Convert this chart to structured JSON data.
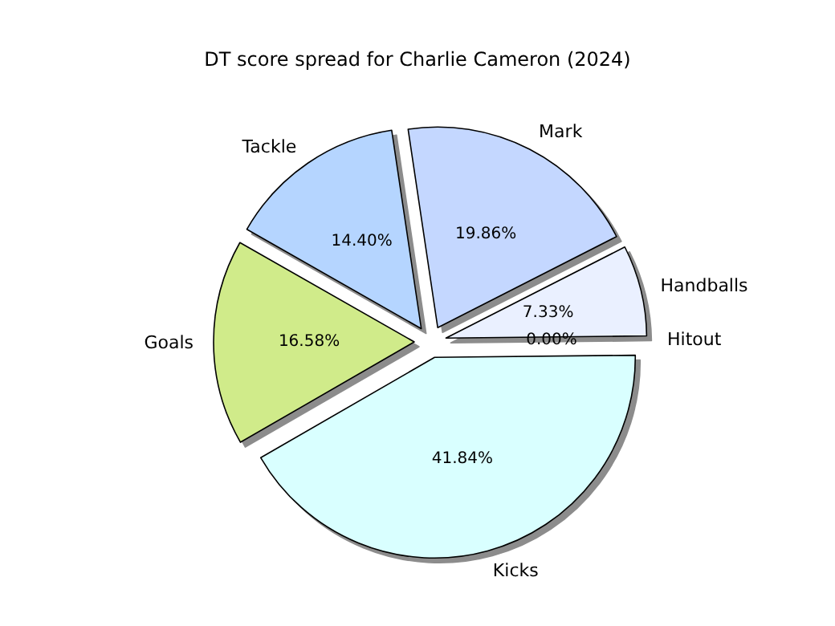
{
  "chart_data": {
    "type": "pie",
    "title": "DT score spread for Charlie Cameron (2024)",
    "categories": [
      "Kicks",
      "Hitout",
      "Handballs",
      "Mark",
      "Tackle",
      "Goals"
    ],
    "values": [
      41.84,
      0.0,
      7.33,
      19.86,
      14.4,
      16.58
    ],
    "colors": [
      "#d9ffff",
      "#f5f8ff",
      "#eaf0ff",
      "#c4d7ff",
      "#b5d5ff",
      "#d0eb8a"
    ],
    "value_labels": [
      "41.84%",
      "0.00%",
      "7.33%",
      "19.86%",
      "14.40%",
      "16.58%"
    ],
    "legend": false
  }
}
